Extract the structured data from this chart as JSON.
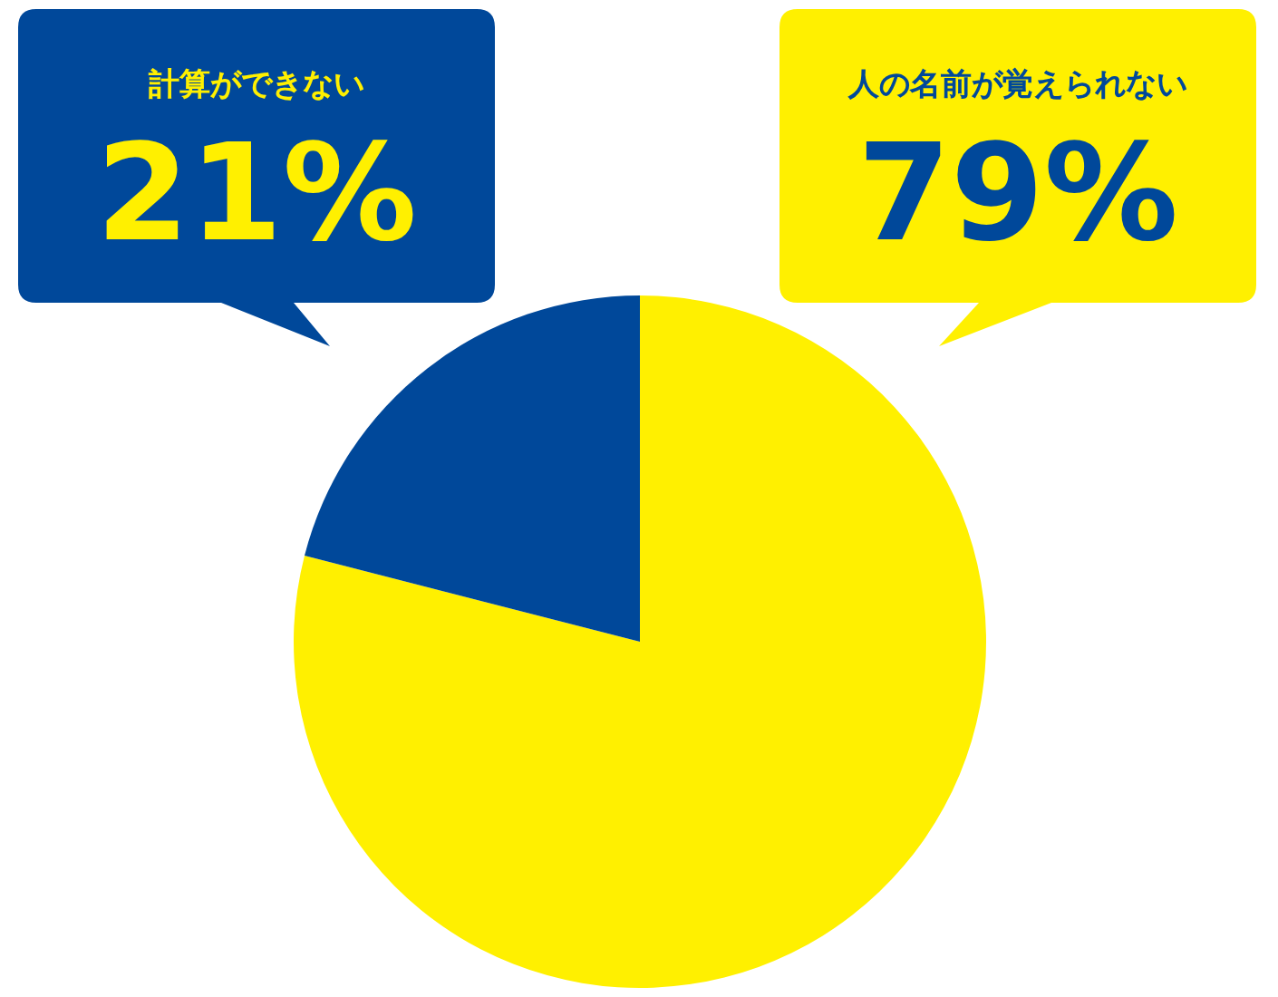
{
  "chart_data": {
    "type": "pie",
    "categories": [
      "人の名前が覚えられない",
      "計算ができない"
    ],
    "values": [
      79,
      21
    ],
    "colors": [
      "#fff000",
      "#00489a"
    ],
    "value_labels": [
      "79%",
      "21%"
    ]
  }
}
